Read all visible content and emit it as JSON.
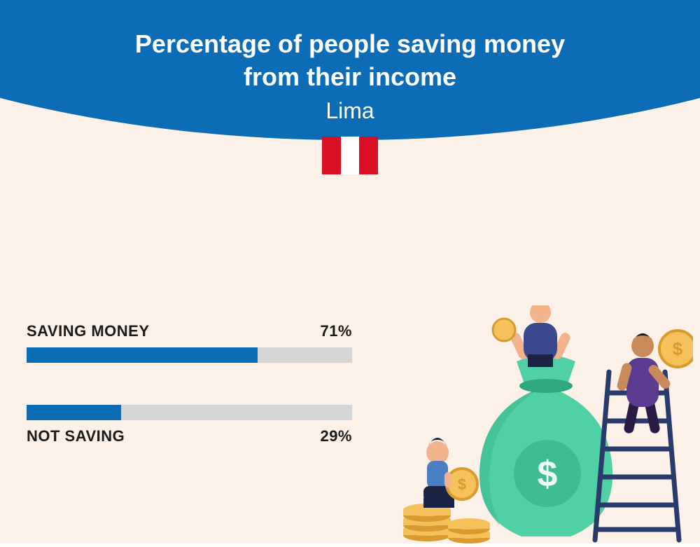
{
  "colors": {
    "page_bg": "#fcf1e8",
    "header_bg": "#0d6cb6",
    "title_text": "#ffffff",
    "stat_text": "#1a1a1a",
    "bar_fill": "#0d6cb6",
    "bar_track": "#d6d6d6",
    "flag_outer": "#d91023",
    "flag_inner": "#ffffff"
  },
  "header": {
    "title_line1": "Percentage of people saving money",
    "title_line2": "from their income",
    "subtitle": "Lima",
    "flag_country": "Peru"
  },
  "stats": [
    {
      "label": "SAVING MONEY",
      "percent": 71,
      "percent_text": "71%",
      "label_position": "above"
    },
    {
      "label": "NOT SAVING",
      "percent": 29,
      "percent_text": "29%",
      "label_position": "below"
    }
  ],
  "illustration": {
    "money_bag_color": "#4fd1a5",
    "money_bag_dark": "#2fa87e",
    "coin_color": "#f4c15b",
    "coin_edge": "#d99b2e",
    "ladder_color": "#2a3a6b",
    "person1_top": "#3b4a8f",
    "person1_bottom": "#1a2344",
    "person1_skin": "#f2b28c",
    "person2_top": "#5a3b8f",
    "person2_bottom": "#2a1a44",
    "person2_skin": "#c98a5a",
    "person3_top": "#4a7fc4",
    "person3_skin": "#f2b28c",
    "dollar_sign": "$"
  }
}
